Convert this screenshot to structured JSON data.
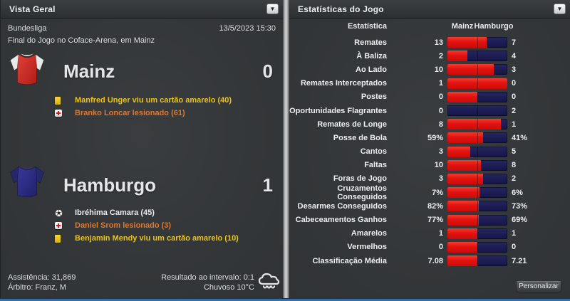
{
  "overview": {
    "title": "Vista Geral",
    "competition": "Bundesliga",
    "datetime": "13/5/2023 15:30",
    "subtitle": "Final do Jogo no Coface-Arena, em Mainz",
    "home_team": {
      "name": "Mainz",
      "score": "0",
      "shirt": {
        "body_light": "#e0413a",
        "body_dark": "#b01c16",
        "sleeve": "#e8e9e9",
        "collar": "#f2f2f2"
      },
      "events": [
        {
          "icon": "yellow-card-icon",
          "type": "yellow",
          "text": "Manfred Unger viu um cartão amarelo (40)"
        },
        {
          "icon": "injury-icon",
          "type": "injury",
          "text": "Branko Loncar lesionado (61)"
        }
      ]
    },
    "away_team": {
      "name": "Hamburgo",
      "score": "1",
      "shirt": {
        "body_light": "#39399c",
        "body_dark": "#20206a",
        "sleeve": "#27276e",
        "collar": "#32328a"
      },
      "events": [
        {
          "icon": "goal-icon",
          "type": "goal",
          "text": "Ibréhima Camara (45)"
        },
        {
          "icon": "injury-icon",
          "type": "injury",
          "text": "Daniel Srom lesionado (3)"
        },
        {
          "icon": "yellow-card-icon",
          "type": "yellow",
          "text": "Benjamin Mendy viu um cartão amarelo (10)"
        }
      ]
    },
    "footer": {
      "attendance": "Assistência: 31,869",
      "referee": "Árbitro: Franz, M",
      "halftime": "Resultado ao intervalo: 0:1",
      "weather": "Chuvoso 10°C",
      "weather_icon": "rain-cloud-icon"
    }
  },
  "stats": {
    "title": "Estatísticas do Jogo",
    "columns": {
      "stat": "Estatística",
      "home": "Mainz",
      "away": "Hamburgo"
    },
    "customize_button": "Personalizar",
    "colors": {
      "home_bar": "#e31210",
      "away_bar": "#1b1b52",
      "yellow_text": "#edc211",
      "injury_text": "#e0782c"
    },
    "rows": [
      {
        "label": "Remates",
        "home": "13",
        "away": "7"
      },
      {
        "label": "À Baliza",
        "home": "2",
        "away": "4"
      },
      {
        "label": "Ao Lado",
        "home": "10",
        "away": "3"
      },
      {
        "label": "Remates Interceptados",
        "home": "1",
        "away": "0"
      },
      {
        "label": "Postes",
        "home": "0",
        "away": "0"
      },
      {
        "label": "Oportunidades Flagrantes",
        "home": "0",
        "away": "2"
      },
      {
        "label": "Remates de Longe",
        "home": "8",
        "away": "1"
      },
      {
        "label": "Posse de Bola",
        "home": "59%",
        "away": "41%"
      },
      {
        "label": "Cantos",
        "home": "3",
        "away": "5"
      },
      {
        "label": "Faltas",
        "home": "10",
        "away": "8"
      },
      {
        "label": "Foras de Jogo",
        "home": "3",
        "away": "2"
      },
      {
        "label": "Cruzamentos Conseguidos",
        "home": "7%",
        "away": "6%"
      },
      {
        "label": "Desarmes Conseguidos",
        "home": "82%",
        "away": "73%"
      },
      {
        "label": "Cabeceamentos Ganhos",
        "home": "77%",
        "away": "69%"
      },
      {
        "label": "Amarelos",
        "home": "1",
        "away": "1"
      },
      {
        "label": "Vermelhos",
        "home": "0",
        "away": "0"
      },
      {
        "label": "Classificação Média",
        "home": "7.08",
        "away": "7.21"
      }
    ]
  },
  "chart_data": {
    "type": "bar",
    "orientation": "horizontal-split",
    "categories": [
      "Remates",
      "À Baliza",
      "Ao Lado",
      "Remates Interceptados",
      "Postes",
      "Oportunidades Flagrantes",
      "Remates de Longe",
      "Posse de Bola",
      "Cantos",
      "Faltas",
      "Foras de Jogo",
      "Cruzamentos Conseguidos",
      "Desarmes Conseguidos",
      "Cabeceamentos Ganhos",
      "Amarelos",
      "Vermelhos",
      "Classificação Média"
    ],
    "series": [
      {
        "name": "Mainz",
        "values": [
          13,
          2,
          10,
          1,
          0,
          0,
          8,
          59,
          3,
          10,
          3,
          7,
          82,
          77,
          1,
          0,
          7.08
        ]
      },
      {
        "name": "Hamburgo",
        "values": [
          7,
          4,
          3,
          0,
          0,
          2,
          1,
          41,
          5,
          8,
          2,
          6,
          73,
          69,
          1,
          0,
          7.21
        ]
      }
    ],
    "title": "Estatísticas do Jogo",
    "legend_position": "top"
  }
}
